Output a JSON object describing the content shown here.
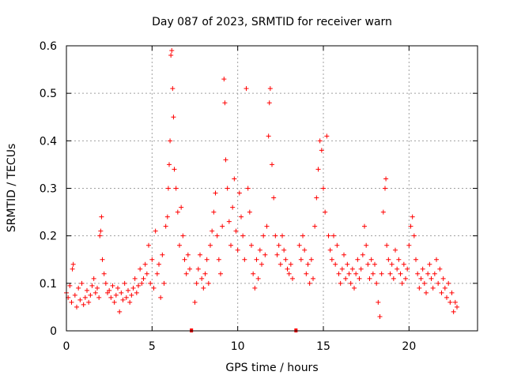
{
  "chart_data": {
    "type": "scatter",
    "title": "Day 087 of 2023, SRMTID for receiver warn",
    "xlabel": "GPS time / hours",
    "ylabel": "SRMTID / TECUs",
    "xlim": [
      0,
      24
    ],
    "ylim": [
      0,
      0.6
    ],
    "x_ticks": [
      0,
      5,
      10,
      15,
      20
    ],
    "x_tick_labels": [
      "0",
      "5",
      "10",
      "15",
      "20"
    ],
    "y_ticks": [
      0,
      0.1,
      0.2,
      0.3,
      0.4,
      0.5,
      0.6
    ],
    "y_tick_labels": [
      "0",
      "0.1",
      "0.2",
      "0.3",
      "0.4",
      "0.5",
      "0.6"
    ],
    "grid": true,
    "marker": "+",
    "color": "#ff0000",
    "gaps_marked_at_x": [
      7.3,
      13.4
    ],
    "series": [
      {
        "name": "warn",
        "points": [
          [
            0.0,
            0.08
          ],
          [
            0.1,
            0.07
          ],
          [
            0.2,
            0.095
          ],
          [
            0.3,
            0.06
          ],
          [
            0.35,
            0.13
          ],
          [
            0.4,
            0.14
          ],
          [
            0.5,
            0.075
          ],
          [
            0.6,
            0.05
          ],
          [
            0.7,
            0.09
          ],
          [
            0.8,
            0.065
          ],
          [
            0.9,
            0.1
          ],
          [
            1.0,
            0.055
          ],
          [
            1.1,
            0.07
          ],
          [
            1.2,
            0.085
          ],
          [
            1.3,
            0.06
          ],
          [
            1.4,
            0.075
          ],
          [
            1.5,
            0.095
          ],
          [
            1.6,
            0.11
          ],
          [
            1.7,
            0.08
          ],
          [
            1.8,
            0.09
          ],
          [
            1.9,
            0.07
          ],
          [
            1.95,
            0.2
          ],
          [
            2.0,
            0.21
          ],
          [
            2.05,
            0.24
          ],
          [
            2.1,
            0.15
          ],
          [
            2.2,
            0.12
          ],
          [
            2.3,
            0.1
          ],
          [
            2.4,
            0.08
          ],
          [
            2.5,
            0.085
          ],
          [
            2.6,
            0.07
          ],
          [
            2.7,
            0.095
          ],
          [
            2.8,
            0.06
          ],
          [
            2.9,
            0.075
          ],
          [
            3.0,
            0.09
          ],
          [
            3.1,
            0.04
          ],
          [
            3.2,
            0.08
          ],
          [
            3.3,
            0.065
          ],
          [
            3.4,
            0.1
          ],
          [
            3.5,
            0.07
          ],
          [
            3.6,
            0.085
          ],
          [
            3.7,
            0.06
          ],
          [
            3.8,
            0.075
          ],
          [
            3.9,
            0.09
          ],
          [
            4.0,
            0.11
          ],
          [
            4.1,
            0.08
          ],
          [
            4.2,
            0.095
          ],
          [
            4.3,
            0.13
          ],
          [
            4.4,
            0.1
          ],
          [
            4.5,
            0.11
          ],
          [
            4.6,
            0.14
          ],
          [
            4.7,
            0.12
          ],
          [
            4.8,
            0.18
          ],
          [
            4.9,
            0.1
          ],
          [
            5.0,
            0.15
          ],
          [
            5.1,
            0.09
          ],
          [
            5.2,
            0.21
          ],
          [
            5.3,
            0.12
          ],
          [
            5.4,
            0.14
          ],
          [
            5.5,
            0.07
          ],
          [
            5.6,
            0.16
          ],
          [
            5.7,
            0.1
          ],
          [
            5.8,
            0.22
          ],
          [
            5.9,
            0.24
          ],
          [
            5.95,
            0.3
          ],
          [
            6.0,
            0.35
          ],
          [
            6.05,
            0.4
          ],
          [
            6.1,
            0.58
          ],
          [
            6.15,
            0.59
          ],
          [
            6.2,
            0.51
          ],
          [
            6.25,
            0.45
          ],
          [
            6.3,
            0.34
          ],
          [
            6.4,
            0.3
          ],
          [
            6.5,
            0.25
          ],
          [
            6.6,
            0.18
          ],
          [
            6.7,
            0.26
          ],
          [
            6.8,
            0.2
          ],
          [
            6.9,
            0.15
          ],
          [
            7.0,
            0.12
          ],
          [
            7.1,
            0.16
          ],
          [
            7.2,
            0.13
          ],
          [
            7.5,
            0.06
          ],
          [
            7.6,
            0.1
          ],
          [
            7.7,
            0.13
          ],
          [
            7.8,
            0.16
          ],
          [
            7.9,
            0.11
          ],
          [
            8.0,
            0.09
          ],
          [
            8.1,
            0.12
          ],
          [
            8.2,
            0.15
          ],
          [
            8.3,
            0.1
          ],
          [
            8.4,
            0.18
          ],
          [
            8.5,
            0.21
          ],
          [
            8.6,
            0.25
          ],
          [
            8.7,
            0.29
          ],
          [
            8.8,
            0.2
          ],
          [
            8.9,
            0.15
          ],
          [
            9.0,
            0.12
          ],
          [
            9.1,
            0.22
          ],
          [
            9.2,
            0.53
          ],
          [
            9.25,
            0.48
          ],
          [
            9.3,
            0.36
          ],
          [
            9.4,
            0.3
          ],
          [
            9.5,
            0.23
          ],
          [
            9.6,
            0.18
          ],
          [
            9.7,
            0.26
          ],
          [
            9.8,
            0.32
          ],
          [
            9.9,
            0.21
          ],
          [
            10.0,
            0.17
          ],
          [
            10.1,
            0.29
          ],
          [
            10.2,
            0.24
          ],
          [
            10.3,
            0.2
          ],
          [
            10.4,
            0.15
          ],
          [
            10.5,
            0.51
          ],
          [
            10.6,
            0.3
          ],
          [
            10.7,
            0.25
          ],
          [
            10.8,
            0.18
          ],
          [
            10.9,
            0.12
          ],
          [
            11.0,
            0.09
          ],
          [
            11.1,
            0.15
          ],
          [
            11.2,
            0.11
          ],
          [
            11.3,
            0.17
          ],
          [
            11.4,
            0.14
          ],
          [
            11.5,
            0.2
          ],
          [
            11.6,
            0.16
          ],
          [
            11.7,
            0.22
          ],
          [
            11.8,
            0.41
          ],
          [
            11.85,
            0.48
          ],
          [
            11.9,
            0.51
          ],
          [
            12.0,
            0.35
          ],
          [
            12.1,
            0.28
          ],
          [
            12.2,
            0.2
          ],
          [
            12.3,
            0.16
          ],
          [
            12.4,
            0.18
          ],
          [
            12.5,
            0.14
          ],
          [
            12.6,
            0.2
          ],
          [
            12.7,
            0.17
          ],
          [
            12.8,
            0.15
          ],
          [
            12.9,
            0.13
          ],
          [
            13.0,
            0.12
          ],
          [
            13.1,
            0.14
          ],
          [
            13.2,
            0.11
          ],
          [
            13.6,
            0.18
          ],
          [
            13.7,
            0.15
          ],
          [
            13.8,
            0.2
          ],
          [
            13.9,
            0.17
          ],
          [
            14.0,
            0.12
          ],
          [
            14.1,
            0.14
          ],
          [
            14.2,
            0.1
          ],
          [
            14.3,
            0.15
          ],
          [
            14.4,
            0.11
          ],
          [
            14.5,
            0.22
          ],
          [
            14.6,
            0.28
          ],
          [
            14.7,
            0.34
          ],
          [
            14.8,
            0.4
          ],
          [
            14.9,
            0.38
          ],
          [
            15.0,
            0.3
          ],
          [
            15.1,
            0.25
          ],
          [
            15.2,
            0.41
          ],
          [
            15.3,
            0.2
          ],
          [
            15.4,
            0.17
          ],
          [
            15.5,
            0.15
          ],
          [
            15.6,
            0.2
          ],
          [
            15.7,
            0.14
          ],
          [
            15.8,
            0.18
          ],
          [
            15.9,
            0.12
          ],
          [
            16.0,
            0.1
          ],
          [
            16.1,
            0.13
          ],
          [
            16.2,
            0.16
          ],
          [
            16.3,
            0.11
          ],
          [
            16.4,
            0.14
          ],
          [
            16.5,
            0.12
          ],
          [
            16.6,
            0.1
          ],
          [
            16.7,
            0.13
          ],
          [
            16.8,
            0.09
          ],
          [
            16.9,
            0.12
          ],
          [
            17.0,
            0.15
          ],
          [
            17.1,
            0.11
          ],
          [
            17.2,
            0.13
          ],
          [
            17.3,
            0.16
          ],
          [
            17.4,
            0.22
          ],
          [
            17.5,
            0.18
          ],
          [
            17.6,
            0.14
          ],
          [
            17.7,
            0.11
          ],
          [
            17.8,
            0.15
          ],
          [
            17.9,
            0.12
          ],
          [
            18.0,
            0.14
          ],
          [
            18.1,
            0.1
          ],
          [
            18.2,
            0.06
          ],
          [
            18.3,
            0.03
          ],
          [
            18.4,
            0.12
          ],
          [
            18.5,
            0.25
          ],
          [
            18.6,
            0.3
          ],
          [
            18.65,
            0.32
          ],
          [
            18.7,
            0.18
          ],
          [
            18.8,
            0.15
          ],
          [
            18.9,
            0.12
          ],
          [
            19.0,
            0.14
          ],
          [
            19.1,
            0.11
          ],
          [
            19.2,
            0.17
          ],
          [
            19.3,
            0.13
          ],
          [
            19.4,
            0.15
          ],
          [
            19.5,
            0.12
          ],
          [
            19.6,
            0.1
          ],
          [
            19.7,
            0.14
          ],
          [
            19.8,
            0.11
          ],
          [
            19.9,
            0.13
          ],
          [
            20.0,
            0.18
          ],
          [
            20.1,
            0.22
          ],
          [
            20.2,
            0.24
          ],
          [
            20.3,
            0.2
          ],
          [
            20.4,
            0.15
          ],
          [
            20.5,
            0.12
          ],
          [
            20.6,
            0.09
          ],
          [
            20.7,
            0.11
          ],
          [
            20.8,
            0.13
          ],
          [
            20.9,
            0.1
          ],
          [
            21.0,
            0.08
          ],
          [
            21.1,
            0.12
          ],
          [
            21.2,
            0.14
          ],
          [
            21.3,
            0.11
          ],
          [
            21.4,
            0.09
          ],
          [
            21.5,
            0.12
          ],
          [
            21.6,
            0.15
          ],
          [
            21.7,
            0.1
          ],
          [
            21.8,
            0.13
          ],
          [
            21.9,
            0.08
          ],
          [
            22.0,
            0.11
          ],
          [
            22.1,
            0.09
          ],
          [
            22.2,
            0.07
          ],
          [
            22.3,
            0.1
          ],
          [
            22.4,
            0.06
          ],
          [
            22.5,
            0.08
          ],
          [
            22.6,
            0.04
          ],
          [
            22.7,
            0.06
          ],
          [
            22.8,
            0.05
          ]
        ]
      }
    ]
  }
}
